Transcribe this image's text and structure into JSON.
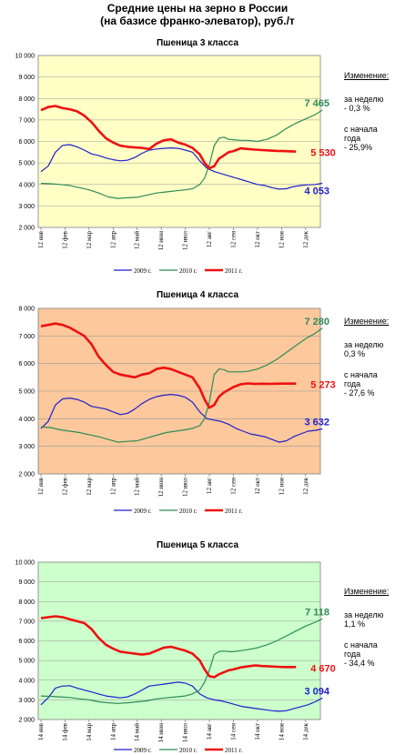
{
  "title": {
    "line1": "Средние цены на зерно в России",
    "line2": "(на базисе франко-элеватор), руб./т"
  },
  "colors": {
    "s2009": "#1f1fcc",
    "s2010": "#2e8b57",
    "s2011": "#ee1111",
    "label2010": "#2e8b57",
    "label2011": "#ee1111",
    "label2009": "#1f1fcc"
  },
  "chart_data": [
    {
      "type": "line",
      "title": "Пшеница 3  класса",
      "background": "#ffffc6",
      "ylim": [
        2000,
        10000
      ],
      "yticks": [
        "10 000",
        "9 000",
        "8 000",
        "7 000",
        "6 000",
        "5 000",
        "4 000",
        "3 000",
        "2 000"
      ],
      "xticks": [
        "12 янв",
        "12 фев",
        "12 мар",
        "12 апр",
        "12 май",
        "12 июн",
        "12 июл",
        "12 авг",
        "12 сен",
        "12 окт",
        "12 ноя",
        "12 дек"
      ],
      "legend": [
        "2009 г.",
        "2010 г.",
        "2011 г."
      ],
      "end_labels": {
        "s2010": "7 465",
        "s2011": "5 530",
        "s2009": "4 053"
      },
      "side": {
        "header": "Изменение:",
        "l1": "за  неделю",
        "l2": "  - 0,3 %",
        "l3": "с начала",
        "l4": "года",
        "l5": " - 25,9%"
      },
      "series": [
        {
          "name": "2009 г.",
          "x": [
            0,
            0.3,
            0.6,
            0.9,
            1.2,
            1.5,
            1.8,
            2.1,
            2.4,
            2.7,
            3.0,
            3.3,
            3.6,
            3.9,
            4.2,
            4.5,
            4.8,
            5.1,
            5.4,
            5.7,
            6.0,
            6.3,
            6.6,
            6.9,
            7.2,
            7.5,
            7.8,
            8.1,
            8.4,
            8.7,
            9.0,
            9.3,
            9.6,
            9.9,
            10.2,
            10.5,
            10.8,
            11.1,
            11.4,
            11.7
          ],
          "values": [
            4600,
            4850,
            5500,
            5820,
            5850,
            5750,
            5600,
            5420,
            5350,
            5230,
            5150,
            5100,
            5130,
            5250,
            5450,
            5600,
            5650,
            5680,
            5700,
            5680,
            5600,
            5500,
            5100,
            4750,
            4600,
            4500,
            4400,
            4300,
            4200,
            4100,
            4000,
            3950,
            3850,
            3780,
            3800,
            3900,
            3950,
            3980,
            4000,
            4053
          ]
        },
        {
          "name": "2010 г.",
          "x": [
            0,
            0.4,
            0.8,
            1.2,
            1.6,
            2.0,
            2.4,
            2.8,
            3.2,
            3.6,
            4.0,
            4.4,
            4.8,
            5.2,
            5.6,
            6.0,
            6.3,
            6.6,
            6.8,
            7.0,
            7.2,
            7.4,
            7.6,
            7.8,
            8.0,
            8.3,
            8.6,
            9.0,
            9.4,
            9.8,
            10.2,
            10.6,
            11.0,
            11.4,
            11.7
          ],
          "values": [
            4050,
            4030,
            4000,
            3950,
            3850,
            3750,
            3600,
            3420,
            3350,
            3380,
            3400,
            3500,
            3600,
            3650,
            3700,
            3750,
            3800,
            4000,
            4300,
            4900,
            5800,
            6150,
            6200,
            6100,
            6080,
            6050,
            6050,
            6000,
            6100,
            6300,
            6600,
            6850,
            7050,
            7250,
            7465
          ]
        },
        {
          "name": "2011 г.",
          "x": [
            0,
            0.3,
            0.6,
            0.9,
            1.2,
            1.5,
            1.8,
            2.1,
            2.4,
            2.7,
            3.0,
            3.3,
            3.6,
            3.9,
            4.2,
            4.5,
            4.8,
            5.1,
            5.4,
            5.7,
            6.0,
            6.3,
            6.6,
            6.8,
            7.0,
            7.2,
            7.4,
            7.6,
            7.8,
            8.0,
            8.3,
            8.6,
            8.9,
            9.2,
            9.5,
            9.8,
            10.1,
            10.4,
            10.6
          ],
          "values": [
            7450,
            7600,
            7650,
            7550,
            7500,
            7400,
            7200,
            6900,
            6500,
            6150,
            5950,
            5800,
            5750,
            5720,
            5700,
            5650,
            5900,
            6050,
            6100,
            5950,
            5850,
            5700,
            5400,
            5000,
            4750,
            4850,
            5200,
            5350,
            5500,
            5550,
            5680,
            5650,
            5620,
            5600,
            5580,
            5560,
            5550,
            5540,
            5530
          ]
        }
      ]
    },
    {
      "type": "line",
      "title": "Пшеница 4 класса",
      "background": "#fcc89c",
      "ylim": [
        2000,
        8000
      ],
      "yticks": [
        "8 000",
        "7 000",
        "6 000",
        "5 000",
        "4 000",
        "3 000",
        "2 000"
      ],
      "xticks": [
        "12 янв",
        "12 фев",
        "12 мар",
        "12 апр",
        "12 май",
        "12 июн",
        "12 июл",
        "12 авг",
        "12 сен",
        "12 окт",
        "12 ноя",
        "12 дек"
      ],
      "legend": [
        "2009 г.",
        "2010 г.",
        "2011 г."
      ],
      "end_labels": {
        "s2010": "7 280",
        "s2011": "5 273",
        "s2009": "3 632"
      },
      "side": {
        "header": "Изменение:",
        "l1": "за  неделю",
        "l2": " 0,3 %",
        "l3": "с начала",
        "l4": "года",
        "l5": " - 27,6 %"
      },
      "series": [
        {
          "name": "2009 г.",
          "x": [
            0,
            0.3,
            0.6,
            0.9,
            1.2,
            1.5,
            1.8,
            2.1,
            2.4,
            2.7,
            3.0,
            3.3,
            3.6,
            3.9,
            4.2,
            4.5,
            4.8,
            5.1,
            5.4,
            5.7,
            6.0,
            6.3,
            6.6,
            6.9,
            7.2,
            7.5,
            7.8,
            8.1,
            8.4,
            8.7,
            9.0,
            9.3,
            9.6,
            9.9,
            10.2,
            10.5,
            10.8,
            11.1,
            11.4,
            11.7
          ],
          "values": [
            3650,
            3900,
            4500,
            4720,
            4750,
            4700,
            4600,
            4450,
            4400,
            4350,
            4250,
            4150,
            4200,
            4350,
            4550,
            4700,
            4800,
            4850,
            4880,
            4850,
            4780,
            4600,
            4250,
            4000,
            3950,
            3900,
            3800,
            3650,
            3550,
            3450,
            3400,
            3350,
            3250,
            3150,
            3200,
            3350,
            3450,
            3550,
            3580,
            3632
          ]
        },
        {
          "name": "2010 г.",
          "x": [
            0,
            0.4,
            0.8,
            1.2,
            1.6,
            2.0,
            2.4,
            2.8,
            3.2,
            3.6,
            4.0,
            4.4,
            4.8,
            5.2,
            5.6,
            6.0,
            6.3,
            6.6,
            6.8,
            7.0,
            7.2,
            7.4,
            7.6,
            7.8,
            8.0,
            8.3,
            8.6,
            9.0,
            9.4,
            9.8,
            10.2,
            10.6,
            11.0,
            11.4,
            11.7
          ],
          "values": [
            3700,
            3680,
            3600,
            3550,
            3500,
            3420,
            3350,
            3250,
            3150,
            3180,
            3200,
            3300,
            3400,
            3500,
            3550,
            3600,
            3650,
            3750,
            4000,
            4600,
            5600,
            5800,
            5780,
            5700,
            5700,
            5700,
            5720,
            5800,
            5950,
            6150,
            6400,
            6650,
            6900,
            7100,
            7280
          ]
        },
        {
          "name": "2011 г.",
          "x": [
            0,
            0.3,
            0.6,
            0.9,
            1.2,
            1.5,
            1.8,
            2.1,
            2.4,
            2.7,
            3.0,
            3.3,
            3.6,
            3.9,
            4.2,
            4.5,
            4.8,
            5.1,
            5.4,
            5.7,
            6.0,
            6.3,
            6.6,
            6.8,
            7.0,
            7.2,
            7.4,
            7.6,
            7.8,
            8.0,
            8.3,
            8.6,
            8.9,
            9.2,
            9.5,
            9.8,
            10.1,
            10.4,
            10.6
          ],
          "values": [
            7350,
            7400,
            7450,
            7400,
            7300,
            7150,
            7000,
            6700,
            6250,
            5950,
            5700,
            5600,
            5550,
            5500,
            5600,
            5650,
            5800,
            5850,
            5800,
            5700,
            5600,
            5500,
            5100,
            4700,
            4400,
            4500,
            4800,
            4950,
            5050,
            5150,
            5250,
            5280,
            5260,
            5270,
            5265,
            5270,
            5275,
            5273,
            5273
          ]
        }
      ]
    },
    {
      "type": "line",
      "title": "Пшеница 5 класса",
      "background": "#ccffcc",
      "ylim": [
        2000,
        10000
      ],
      "yticks": [
        "10 000",
        "9 000",
        "8 000",
        "7 000",
        "6 000",
        "5 000",
        "4 000",
        "3 000",
        "2 000"
      ],
      "xticks": [
        "14 янв",
        "14 фев",
        "14 мар",
        "14 апр",
        "14 май",
        "14 июн",
        "14 июл",
        "14 авг",
        "14 сен",
        "14 окт",
        "14 ноя",
        "14 дек"
      ],
      "legend": [
        "2009 г.",
        "2010 г.",
        "2011 г."
      ],
      "end_labels": {
        "s2010": "7 118",
        "s2011": "4 670",
        "s2009": "3 094"
      },
      "side": {
        "header": "Изменение:",
        "l1": "за  неделю",
        "l2": " 1,1 %",
        "l3": "с начала",
        "l4": "года",
        "l5": " - 34,4 %"
      },
      "series": [
        {
          "name": "2009 г.",
          "x": [
            0,
            0.3,
            0.6,
            0.9,
            1.2,
            1.5,
            1.8,
            2.1,
            2.4,
            2.7,
            3.0,
            3.3,
            3.6,
            3.9,
            4.2,
            4.5,
            4.8,
            5.1,
            5.4,
            5.7,
            6.0,
            6.3,
            6.6,
            6.9,
            7.2,
            7.5,
            7.8,
            8.1,
            8.4,
            8.7,
            9.0,
            9.3,
            9.6,
            9.9,
            10.2,
            10.5,
            10.8,
            11.1,
            11.4,
            11.7
          ],
          "values": [
            2750,
            3100,
            3600,
            3700,
            3720,
            3600,
            3500,
            3400,
            3300,
            3200,
            3150,
            3100,
            3150,
            3300,
            3500,
            3700,
            3750,
            3800,
            3850,
            3900,
            3850,
            3700,
            3300,
            3100,
            3000,
            2950,
            2850,
            2750,
            2650,
            2600,
            2550,
            2500,
            2450,
            2420,
            2450,
            2550,
            2650,
            2750,
            2900,
            3094
          ]
        },
        {
          "name": "2010 г.",
          "x": [
            0,
            0.4,
            0.8,
            1.2,
            1.6,
            2.0,
            2.4,
            2.8,
            3.2,
            3.6,
            4.0,
            4.4,
            4.8,
            5.2,
            5.6,
            6.0,
            6.3,
            6.6,
            6.8,
            7.0,
            7.2,
            7.4,
            7.6,
            7.8,
            8.0,
            8.3,
            8.6,
            9.0,
            9.4,
            9.8,
            10.2,
            10.6,
            11.0,
            11.4,
            11.7
          ],
          "values": [
            3200,
            3180,
            3150,
            3120,
            3050,
            3000,
            2900,
            2850,
            2820,
            2850,
            2900,
            2950,
            3050,
            3100,
            3150,
            3200,
            3300,
            3500,
            3900,
            4500,
            5300,
            5450,
            5480,
            5450,
            5450,
            5500,
            5550,
            5650,
            5800,
            6000,
            6250,
            6500,
            6750,
            6950,
            7118
          ]
        },
        {
          "name": "2011 г.",
          "x": [
            0,
            0.3,
            0.6,
            0.9,
            1.2,
            1.5,
            1.8,
            2.1,
            2.4,
            2.7,
            3.0,
            3.3,
            3.6,
            3.9,
            4.2,
            4.5,
            4.8,
            5.1,
            5.4,
            5.7,
            6.0,
            6.3,
            6.6,
            6.8,
            7.0,
            7.2,
            7.4,
            7.6,
            7.8,
            8.0,
            8.3,
            8.6,
            8.9,
            9.2,
            9.5,
            9.8,
            10.1,
            10.4,
            10.6
          ],
          "values": [
            7150,
            7200,
            7250,
            7200,
            7100,
            7000,
            6900,
            6600,
            6150,
            5800,
            5600,
            5450,
            5400,
            5350,
            5300,
            5350,
            5500,
            5650,
            5700,
            5600,
            5500,
            5350,
            5000,
            4550,
            4200,
            4150,
            4300,
            4400,
            4500,
            4550,
            4650,
            4700,
            4750,
            4720,
            4700,
            4680,
            4670,
            4670,
            4670
          ]
        }
      ]
    }
  ]
}
